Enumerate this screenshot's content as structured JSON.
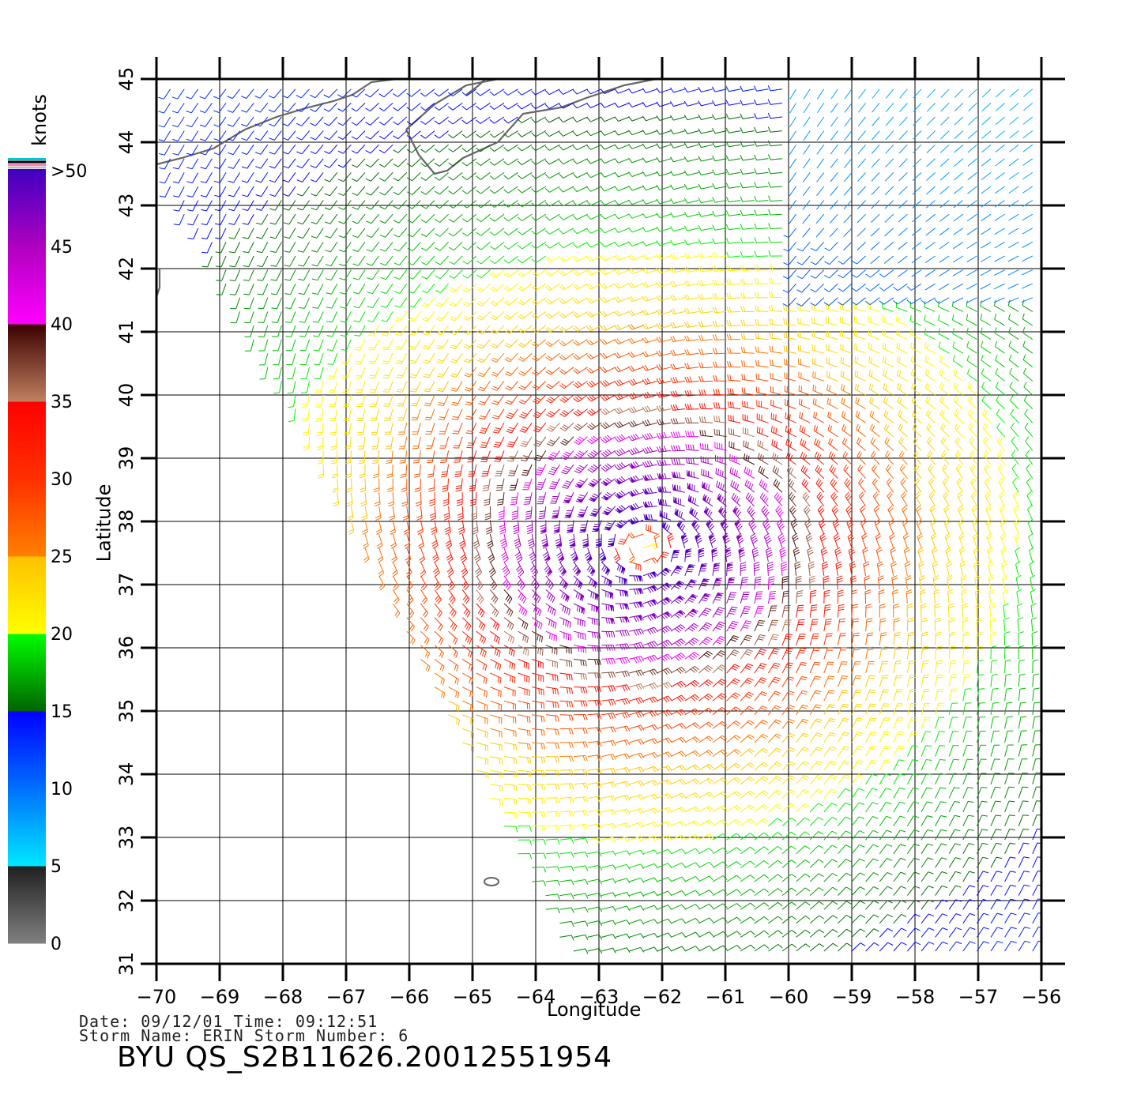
{
  "map": {
    "lon_range": [
      -70,
      -56
    ],
    "lat_range": [
      31,
      45
    ],
    "x_ticks": [
      "-70",
      "-69",
      "-68",
      "-67",
      "-66",
      "-65",
      "-64",
      "-63",
      "-62",
      "-61",
      "-60",
      "-59",
      "-58",
      "-57",
      "-56"
    ],
    "y_ticks": [
      "31",
      "32",
      "33",
      "34",
      "35",
      "36",
      "37",
      "38",
      "39",
      "40",
      "41",
      "42",
      "43",
      "44",
      "45"
    ],
    "xlabel": "Longitude",
    "ylabel": "Latitude",
    "grid": true,
    "storm_center": {
      "lon": -62.3,
      "lat": 37.6
    },
    "coastline_color": "#666666"
  },
  "legend": {
    "unit": "knots",
    "labels": [
      ">50",
      "45",
      "40",
      "35",
      "30",
      "25",
      "20",
      "15",
      "10",
      "5",
      "0"
    ],
    "bands": [
      {
        "from": 0,
        "to": 5,
        "colors": [
          "#808080",
          "#202020"
        ]
      },
      {
        "from": 5,
        "to": 10,
        "colors": [
          "#00e8ff",
          "#0070ff"
        ]
      },
      {
        "from": 10,
        "to": 15,
        "colors": [
          "#0070ff",
          "#0000ff"
        ]
      },
      {
        "from": 15,
        "to": 20,
        "colors": [
          "#006400",
          "#00ff00"
        ]
      },
      {
        "from": 20,
        "to": 25,
        "colors": [
          "#ffff00",
          "#ffc000"
        ]
      },
      {
        "from": 25,
        "to": 30,
        "colors": [
          "#ff8000",
          "#ff3000"
        ]
      },
      {
        "from": 30,
        "to": 35,
        "colors": [
          "#ff3000",
          "#ff0000"
        ]
      },
      {
        "from": 35,
        "to": 40,
        "colors": [
          "#c08060",
          "#3a0000"
        ]
      },
      {
        "from": 40,
        "to": 45,
        "colors": [
          "#ff00ff",
          "#b000c0"
        ]
      },
      {
        "from": 45,
        "to": 50,
        "colors": [
          "#b000c0",
          "#4000c0"
        ]
      }
    ]
  },
  "info": {
    "date_line": "Date: 09/12/01   Time: 09:12:51",
    "storm_line": "Storm Name: ERIN   Storm Number: 6",
    "product": "BYU QS_S2B11626.20012551954"
  }
}
